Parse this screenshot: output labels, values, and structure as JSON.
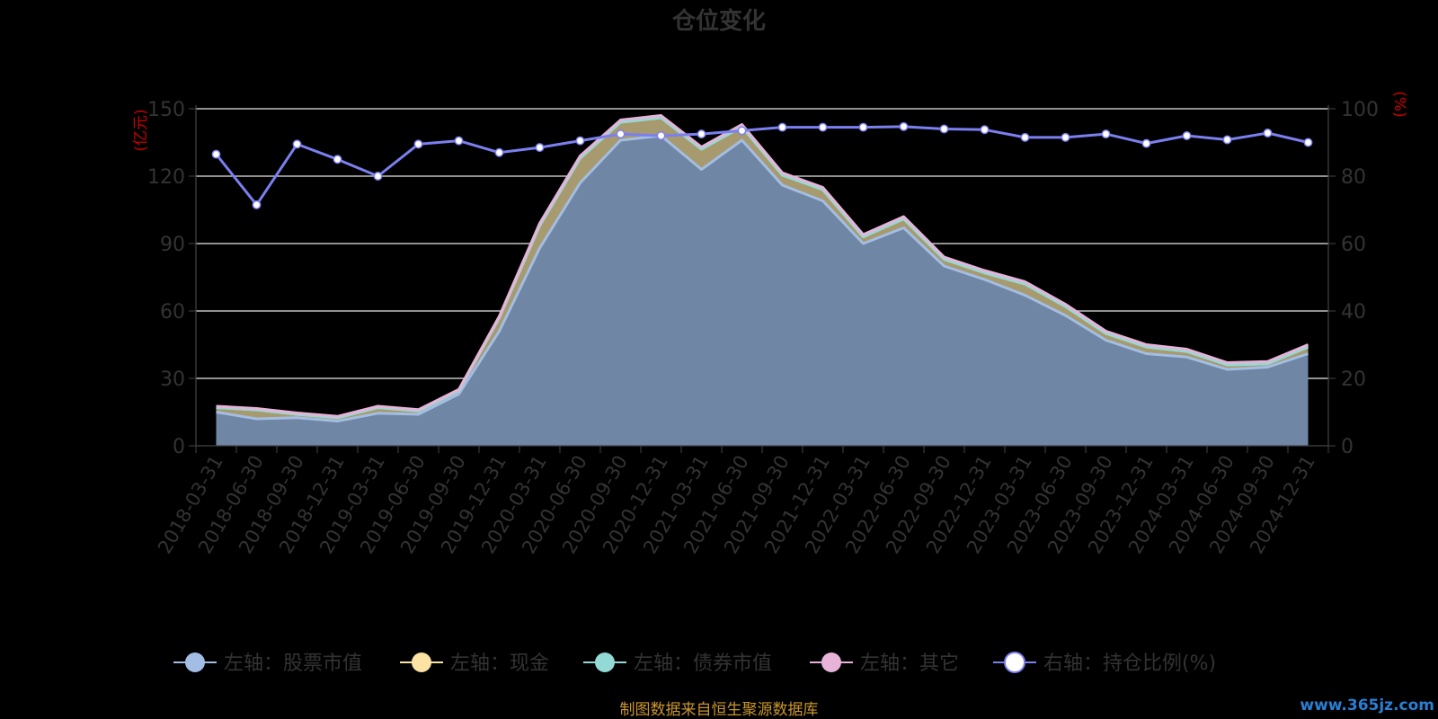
{
  "chart_data": {
    "type": "area",
    "title": "仓位变化",
    "left_axis_unit": "(亿元)",
    "right_axis_unit": "(%)",
    "ylim_left": [
      0,
      150
    ],
    "yticks_left": [
      "0",
      "30",
      "60",
      "90",
      "120",
      "150"
    ],
    "ylim_right": [
      0,
      100
    ],
    "yticks_right": [
      "0",
      "20",
      "40",
      "60",
      "80",
      "100"
    ],
    "grid": true,
    "legend_position": "bottom",
    "x": [
      "2018-03-31",
      "2018-06-30",
      "2018-09-30",
      "2018-12-31",
      "2019-03-31",
      "2019-06-30",
      "2019-09-30",
      "2019-12-31",
      "2020-03-31",
      "2020-06-30",
      "2020-09-30",
      "2020-12-31",
      "2021-03-31",
      "2021-06-30",
      "2021-09-30",
      "2021-12-31",
      "2022-03-31",
      "2022-06-30",
      "2022-09-30",
      "2022-12-31",
      "2023-03-31",
      "2023-06-30",
      "2023-09-30",
      "2023-12-31",
      "2024-03-31",
      "2024-06-30",
      "2024-09-30",
      "2024-12-31"
    ],
    "series": [
      {
        "name": "左轴：股票市值",
        "axis": "left",
        "stacked": true,
        "color": "#a3bde4",
        "values": [
          15,
          12,
          12.5,
          11,
          14.5,
          14,
          23,
          51,
          88,
          117,
          136,
          138,
          123,
          136,
          116,
          109,
          90,
          97,
          80,
          74,
          67,
          58,
          47,
          41,
          39.5,
          34,
          35,
          41
        ]
      },
      {
        "name": "左轴：现金",
        "axis": "left",
        "stacked": true,
        "color": "#fbe3a3",
        "values": [
          2,
          4,
          1.5,
          1.5,
          2.5,
          1.5,
          1.5,
          6,
          10,
          11,
          8,
          8,
          9,
          6,
          4.5,
          5,
          3,
          4,
          3,
          3,
          5,
          4,
          3,
          3,
          2.5,
          2,
          1.5,
          3
        ]
      },
      {
        "name": "左轴：债券市值",
        "axis": "left",
        "stacked": true,
        "color": "#93d9d5",
        "values": [
          0,
          0,
          0,
          0,
          0,
          0,
          0,
          0,
          0,
          0,
          0,
          0,
          0,
          0,
          0,
          0,
          0,
          0,
          0,
          0,
          0,
          0,
          0,
          0,
          0,
          0,
          0,
          0
        ]
      },
      {
        "name": "左轴：其它",
        "axis": "left",
        "stacked": true,
        "color": "#e7b3d8",
        "values": [
          0.6,
          0.6,
          0.6,
          0.6,
          0.6,
          0.6,
          0.6,
          0.6,
          1,
          1,
          1,
          1,
          1,
          1,
          1,
          1,
          1,
          1,
          1,
          1,
          1,
          1,
          1,
          1,
          1,
          1,
          1,
          1
        ]
      },
      {
        "name": "右轴：持仓比例(%)",
        "axis": "right",
        "stacked": false,
        "color": "#7b7ff0",
        "values": [
          86.5,
          71.5,
          89.5,
          85,
          80,
          89.5,
          90.5,
          87,
          88.5,
          90.5,
          92.5,
          92,
          92.5,
          93.5,
          94.5,
          94.5,
          94.5,
          94.7,
          94,
          93.8,
          91.5,
          91.5,
          92.5,
          89.7,
          92,
          90.8,
          92.8,
          90
        ]
      }
    ]
  },
  "footer": {
    "source": "制图数据来自恒生聚源数据库",
    "watermark": "www.365jz.com"
  }
}
